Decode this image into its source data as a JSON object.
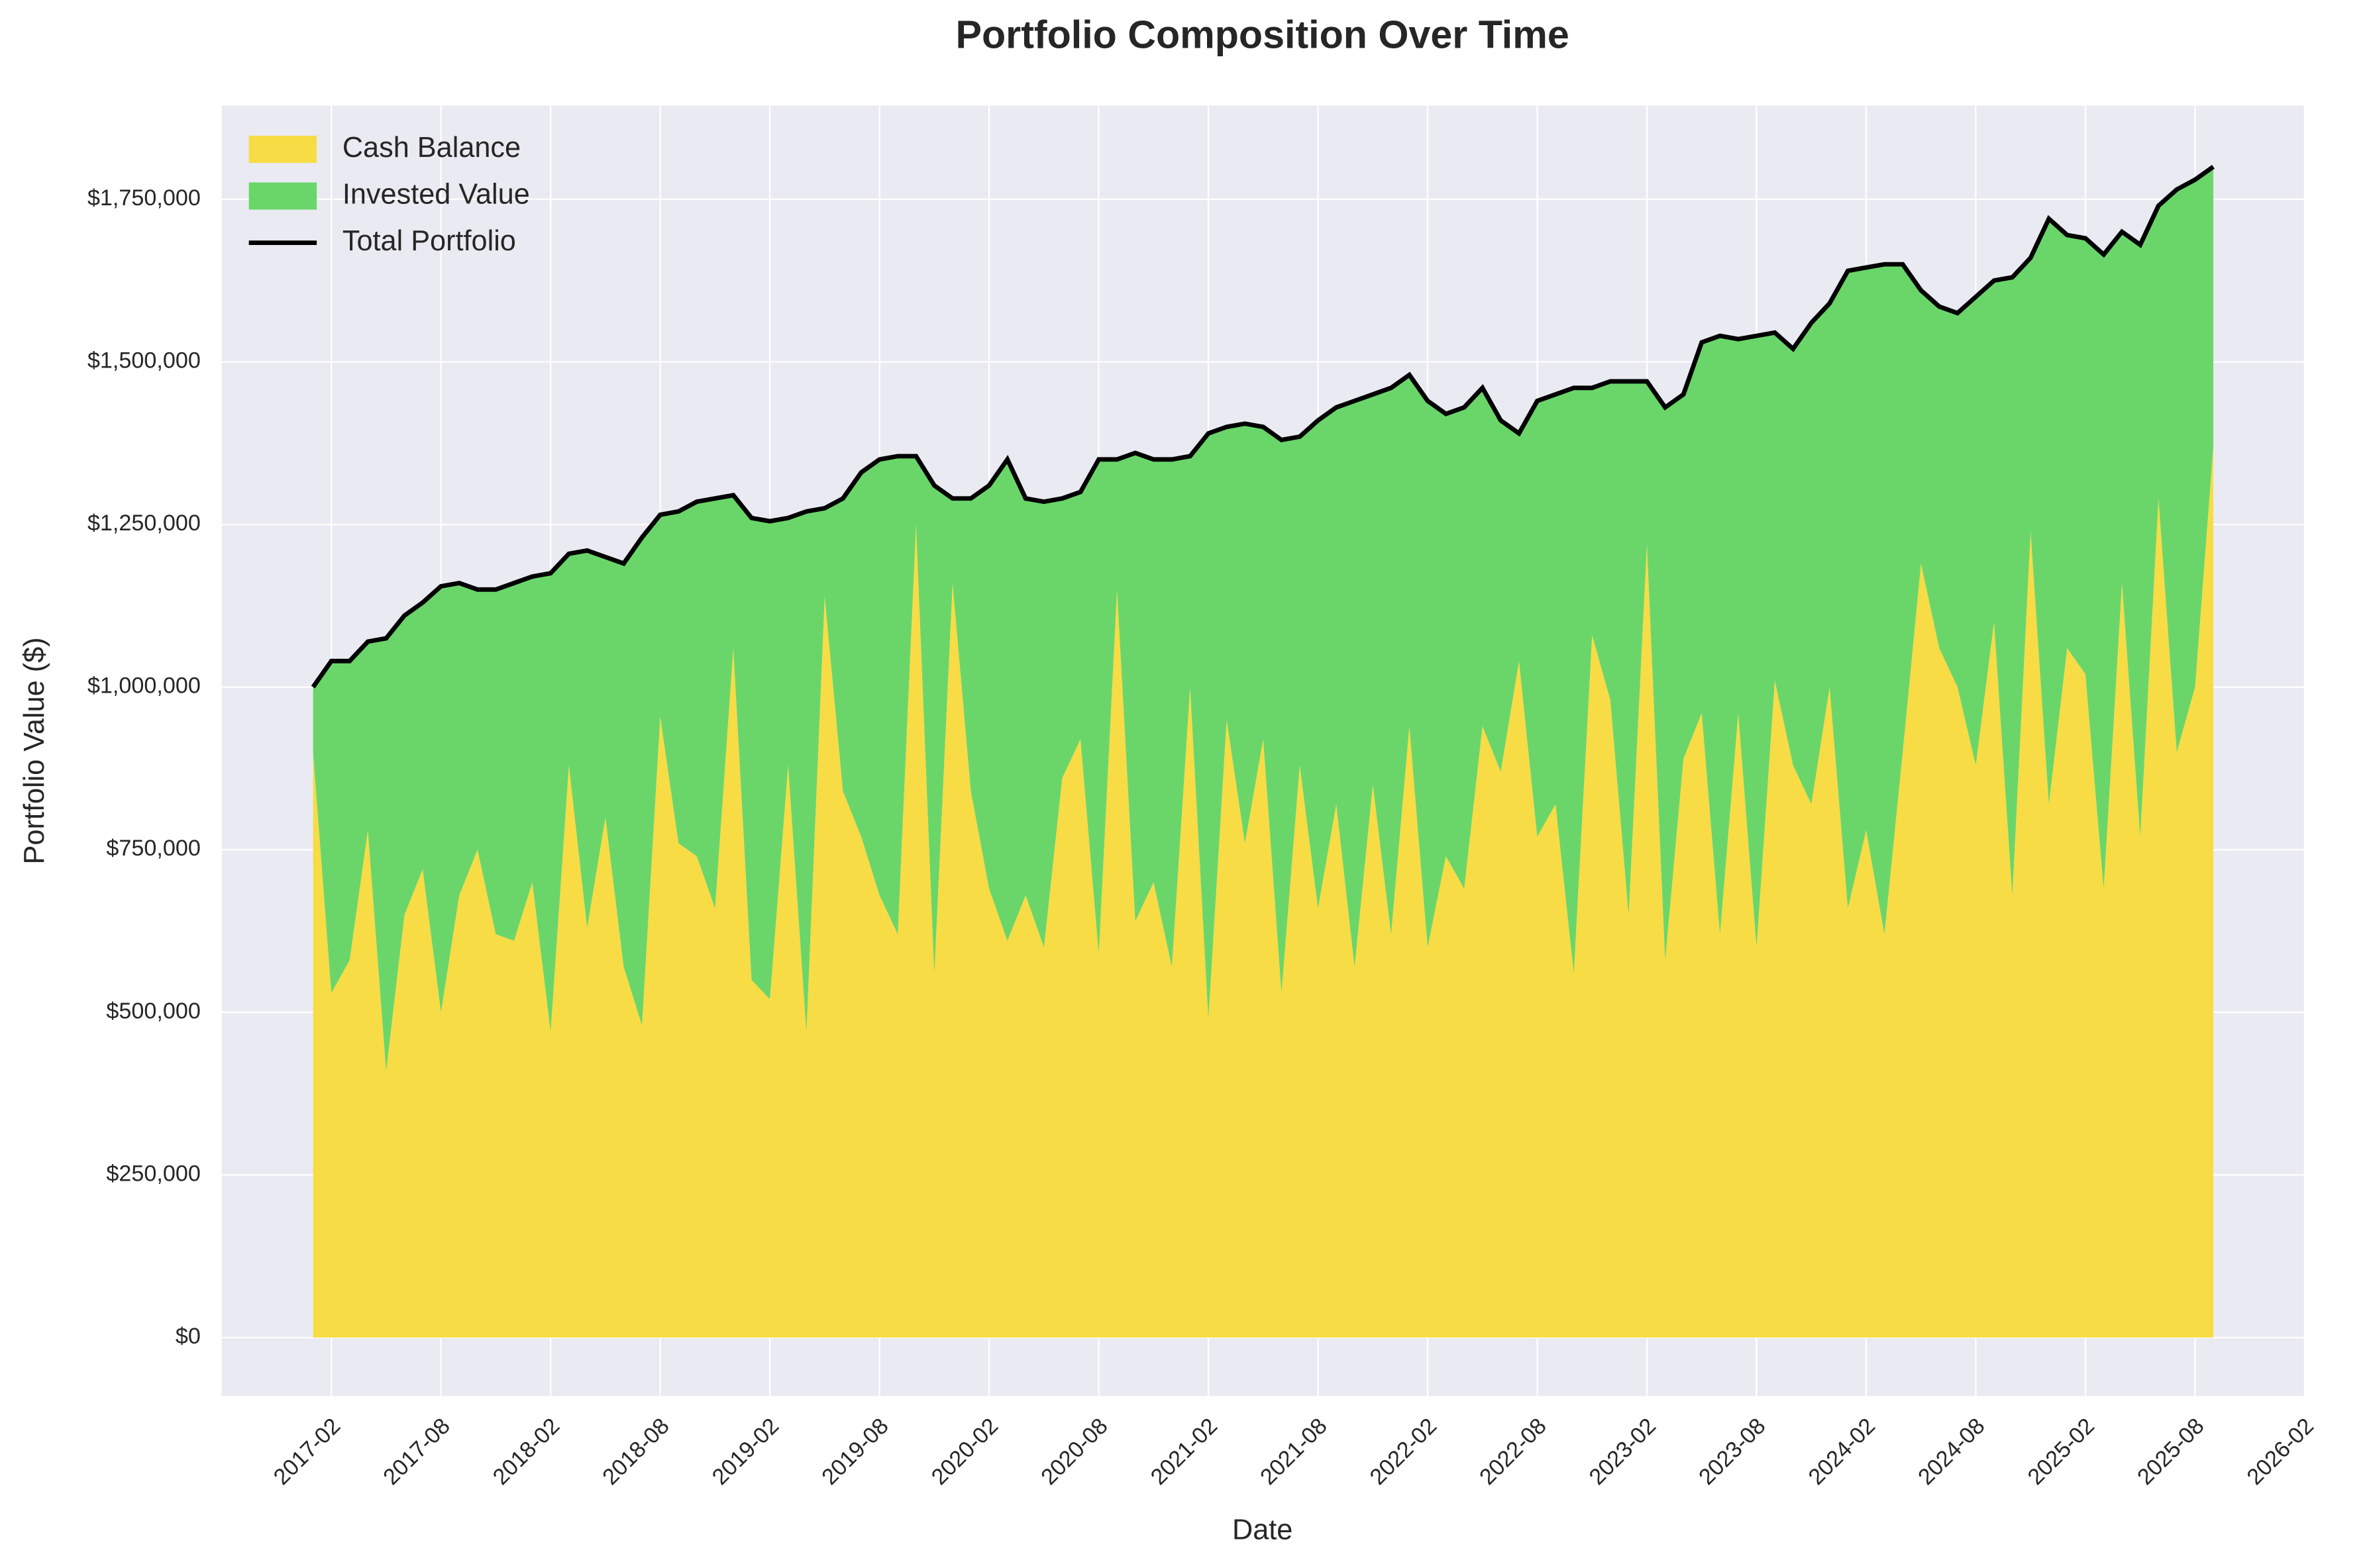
{
  "chart_data": {
    "type": "stacked-area",
    "title": "Portfolio Composition Over Time",
    "x_label": "Date",
    "y_label": "Portfolio Value ($)",
    "x": [
      "2017-01",
      "2017-02",
      "2017-03",
      "2017-04",
      "2017-05",
      "2017-06",
      "2017-07",
      "2017-08",
      "2017-09",
      "2017-10",
      "2017-11",
      "2017-12",
      "2018-01",
      "2018-02",
      "2018-03",
      "2018-04",
      "2018-05",
      "2018-06",
      "2018-07",
      "2018-08",
      "2018-09",
      "2018-10",
      "2018-11",
      "2018-12",
      "2019-01",
      "2019-02",
      "2019-03",
      "2019-04",
      "2019-05",
      "2019-06",
      "2019-07",
      "2019-08",
      "2019-09",
      "2019-10",
      "2019-11",
      "2019-12",
      "2020-01",
      "2020-02",
      "2020-03",
      "2020-04",
      "2020-05",
      "2020-06",
      "2020-07",
      "2020-08",
      "2020-09",
      "2020-10",
      "2020-11",
      "2020-12",
      "2021-01",
      "2021-02",
      "2021-03",
      "2021-04",
      "2021-05",
      "2021-06",
      "2021-07",
      "2021-08",
      "2021-09",
      "2021-10",
      "2021-11",
      "2021-12",
      "2022-01",
      "2022-02",
      "2022-03",
      "2022-04",
      "2022-05",
      "2022-06",
      "2022-07",
      "2022-08",
      "2022-09",
      "2022-10",
      "2022-11",
      "2022-12",
      "2023-01",
      "2023-02",
      "2023-03",
      "2023-04",
      "2023-05",
      "2023-06",
      "2023-07",
      "2023-08",
      "2023-09",
      "2023-10",
      "2023-11",
      "2023-12",
      "2024-01",
      "2024-02",
      "2024-03",
      "2024-04",
      "2024-05",
      "2024-06",
      "2024-07",
      "2024-08",
      "2024-09",
      "2024-10",
      "2024-11",
      "2024-12",
      "2025-01",
      "2025-02",
      "2025-03",
      "2025-04",
      "2025-05",
      "2025-06",
      "2025-07",
      "2025-08",
      "2025-09"
    ],
    "series": [
      {
        "name": "Cash Balance",
        "color": "#f7dc45",
        "values": [
          900000,
          530000,
          580000,
          780000,
          410000,
          650000,
          720000,
          500000,
          680000,
          750000,
          620000,
          610000,
          700000,
          470000,
          880000,
          630000,
          800000,
          570000,
          480000,
          955000,
          760000,
          740000,
          660000,
          1060000,
          550000,
          520000,
          880000,
          470000,
          1140000,
          840000,
          770000,
          680000,
          620000,
          1250000,
          560000,
          1160000,
          840000,
          690000,
          610000,
          680000,
          600000,
          860000,
          920000,
          590000,
          1150000,
          640000,
          700000,
          570000,
          1000000,
          490000,
          950000,
          760000,
          920000,
          530000,
          880000,
          660000,
          820000,
          570000,
          850000,
          620000,
          940000,
          600000,
          740000,
          690000,
          940000,
          870000,
          1040000,
          770000,
          820000,
          560000,
          1080000,
          980000,
          650000,
          1220000,
          580000,
          890000,
          960000,
          620000,
          960000,
          600000,
          1010000,
          880000,
          820000,
          1000000,
          660000,
          780000,
          620000,
          900000,
          1190000,
          1060000,
          1000000,
          880000,
          1100000,
          680000,
          1240000,
          820000,
          1060000,
          1020000,
          690000,
          1160000,
          770000,
          1290000,
          900000,
          1000000,
          1370000
        ]
      },
      {
        "name": "Invested Value",
        "color": "#6ad66a",
        "values": [
          100000,
          510000,
          460000,
          290000,
          665000,
          460000,
          410000,
          655000,
          480000,
          400000,
          530000,
          550000,
          470000,
          705000,
          325000,
          580000,
          400000,
          620000,
          750000,
          310000,
          510000,
          545000,
          630000,
          235000,
          710000,
          735000,
          380000,
          800000,
          135000,
          450000,
          560000,
          670000,
          735000,
          105000,
          750000,
          130000,
          450000,
          620000,
          740000,
          610000,
          685000,
          430000,
          380000,
          760000,
          200000,
          720000,
          650000,
          780000,
          355000,
          900000,
          450000,
          645000,
          480000,
          850000,
          505000,
          750000,
          610000,
          870000,
          600000,
          840000,
          540000,
          840000,
          680000,
          740000,
          520000,
          540000,
          350000,
          670000,
          630000,
          900000,
          380000,
          490000,
          820000,
          250000,
          850000,
          560000,
          570000,
          920000,
          575000,
          940000,
          535000,
          640000,
          740000,
          590000,
          980000,
          865000,
          1030000,
          750000,
          420000,
          525000,
          575000,
          720000,
          525000,
          950000,
          420000,
          900000,
          635000,
          670000,
          975000,
          540000,
          910000,
          450000,
          865000,
          780000,
          430000
        ]
      },
      {
        "name": "Total Portfolio",
        "color": "#000000"
      }
    ],
    "xlim": [
      "2016-08",
      "2026-02"
    ],
    "xticks": [
      "2017-02",
      "2017-08",
      "2018-02",
      "2018-08",
      "2019-02",
      "2019-08",
      "2020-02",
      "2020-08",
      "2021-02",
      "2021-08",
      "2022-02",
      "2022-08",
      "2023-02",
      "2023-08",
      "2024-02",
      "2024-08",
      "2025-02",
      "2025-08",
      "2026-02"
    ],
    "ylim": [
      -90000,
      1894000
    ],
    "yticks": [
      {
        "value": 0,
        "label": "$0"
      },
      {
        "value": 250000,
        "label": "$250,000"
      },
      {
        "value": 500000,
        "label": "$500,000"
      },
      {
        "value": 750000,
        "label": "$750,000"
      },
      {
        "value": 1000000,
        "label": "$1,000,000"
      },
      {
        "value": 1250000,
        "label": "$1,250,000"
      },
      {
        "value": 1500000,
        "label": "$1,500,000"
      },
      {
        "value": 1750000,
        "label": "$1,750,000"
      }
    ],
    "grid": true,
    "legend": "upper-left"
  }
}
